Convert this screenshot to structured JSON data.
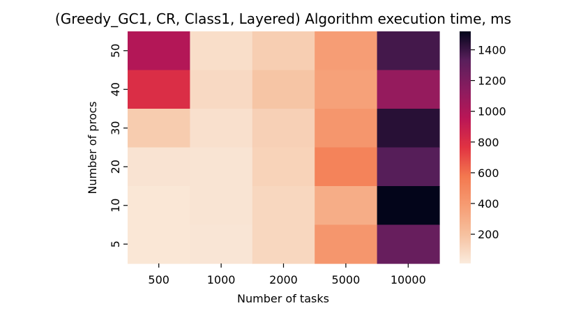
{
  "chart_data": {
    "type": "heatmap",
    "title": "(Greedy_GC1, CR, Class1, Layered) Algorithm execution time, ms",
    "xlabel": "Number of tasks",
    "ylabel": "Number of procs",
    "x_categories": [
      "500",
      "1000",
      "2000",
      "5000",
      "10000"
    ],
    "y_categories": [
      "50",
      "40",
      "30",
      "20",
      "10",
      "5"
    ],
    "values": [
      [
        980,
        70,
        140,
        380,
        1380
      ],
      [
        800,
        90,
        180,
        360,
        1100
      ],
      [
        150,
        60,
        130,
        420,
        1440
      ],
      [
        45,
        40,
        120,
        520,
        1340
      ],
      [
        30,
        40,
        100,
        300,
        1520
      ],
      [
        30,
        35,
        100,
        420,
        1280
      ]
    ],
    "colorbar": {
      "min": 10,
      "max": 1520,
      "ticks": [
        "200",
        "400",
        "600",
        "800",
        "1000",
        "1200",
        "1400"
      ],
      "colormap": "rocket_r"
    },
    "grid": false
  }
}
